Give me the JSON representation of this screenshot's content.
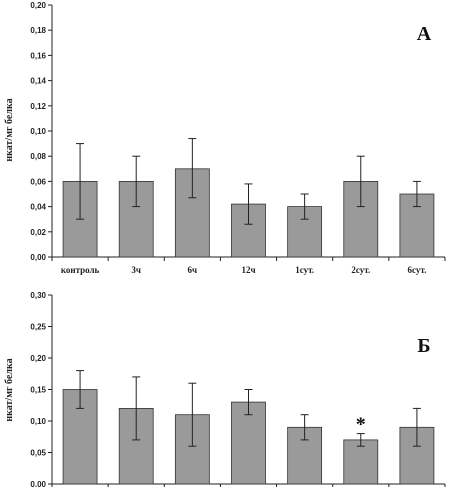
{
  "chart_data": [
    {
      "type": "bar",
      "panel_label": "A",
      "ylabel": "нкат/мг белка",
      "ylim": [
        0,
        0.2
      ],
      "yticks": [
        "0,00",
        "0,02",
        "0,04",
        "0,06",
        "0,08",
        "0,10",
        "0,12",
        "0,14",
        "0,16",
        "0,18",
        "0,20"
      ],
      "categories": [
        "контроль",
        "3ч",
        "6ч",
        "12ч",
        "1сут.",
        "2сут.",
        "6сут."
      ],
      "values": [
        0.06,
        0.06,
        0.07,
        0.042,
        0.04,
        0.06,
        0.05
      ],
      "error_low": [
        0.03,
        0.04,
        0.047,
        0.026,
        0.03,
        0.04,
        0.04
      ],
      "error_high": [
        0.09,
        0.08,
        0.094,
        0.058,
        0.05,
        0.08,
        0.06
      ],
      "bar_color": "#9a9a9a",
      "grid": false
    },
    {
      "type": "bar",
      "panel_label": "Б",
      "ylabel": "нкат/мг белка",
      "ylim": [
        0,
        0.3
      ],
      "yticks": [
        "0,00",
        "0,05",
        "0,10",
        "0,15",
        "0,20",
        "0,25",
        "0,30"
      ],
      "values": [
        0.15,
        0.12,
        0.11,
        0.13,
        0.09,
        0.07,
        0.09
      ],
      "error_low": [
        0.12,
        0.07,
        0.06,
        0.11,
        0.07,
        0.06,
        0.06
      ],
      "error_high": [
        0.18,
        0.17,
        0.16,
        0.15,
        0.11,
        0.08,
        0.12
      ],
      "markers": [
        "",
        "",
        "",
        "",
        "",
        "*",
        ""
      ],
      "bar_color": "#9a9a9a",
      "grid": false
    }
  ]
}
